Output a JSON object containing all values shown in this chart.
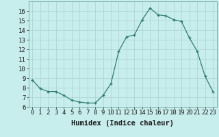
{
  "x": [
    0,
    1,
    2,
    3,
    4,
    5,
    6,
    7,
    8,
    9,
    10,
    11,
    12,
    13,
    14,
    15,
    16,
    17,
    18,
    19,
    20,
    21,
    22,
    23
  ],
  "y": [
    8.8,
    7.9,
    7.6,
    7.6,
    7.2,
    6.7,
    6.5,
    6.4,
    6.4,
    7.2,
    8.4,
    11.8,
    13.3,
    13.5,
    15.1,
    16.3,
    15.6,
    15.5,
    15.1,
    14.9,
    13.2,
    11.8,
    9.2,
    7.6
  ],
  "xlabel": "Humidex (Indice chaleur)",
  "ylim": [
    6,
    17
  ],
  "xlim": [
    -0.5,
    23.5
  ],
  "yticks": [
    6,
    7,
    8,
    9,
    10,
    11,
    12,
    13,
    14,
    15,
    16
  ],
  "xticks": [
    0,
    1,
    2,
    3,
    4,
    5,
    6,
    7,
    8,
    9,
    10,
    11,
    12,
    13,
    14,
    15,
    16,
    17,
    18,
    19,
    20,
    21,
    22,
    23
  ],
  "line_color": "#2e7d6e",
  "marker_color": "#2e7d6e",
  "bg_color": "#c8eded",
  "grid_color": "#b0d4d4",
  "text_color": "#1a1a1a",
  "xlabel_fontsize": 7.5,
  "tick_fontsize": 6.5
}
